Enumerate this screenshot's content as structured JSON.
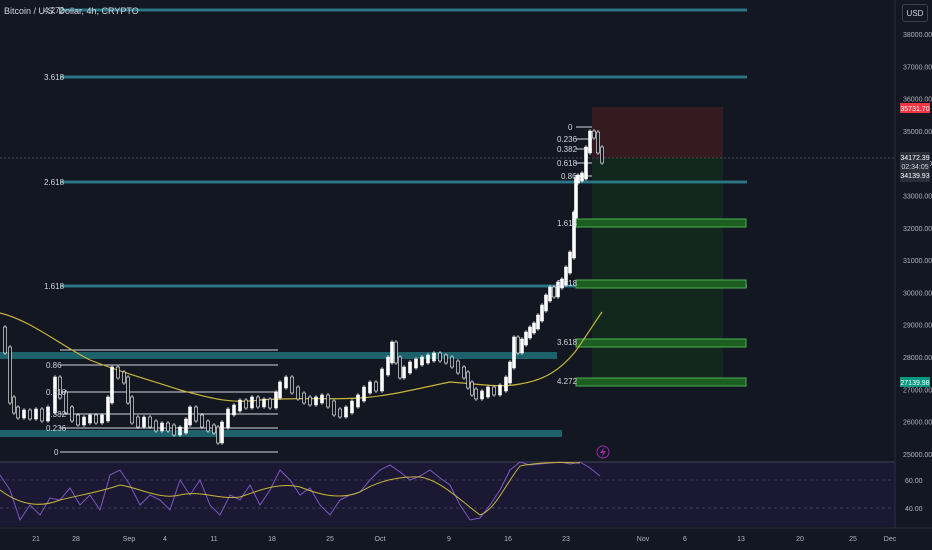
{
  "header": {
    "title": "Bitcoin / U.S. Dollar, 4h, CRYPTO",
    "currency": "USD"
  },
  "colors": {
    "background": "#131722",
    "fib_line": "#4fc3d9",
    "fib_band": "#1f5f6e",
    "ma_line": "#c9b53a",
    "rsi_line": "#7e57c2",
    "up_candle": "#ffffff",
    "down_candle": "#ffffff",
    "stop_zone": "#3a1b22",
    "target_zone": "#132a1f",
    "target_box_border": "#4caf50",
    "red_tag": "#f23645",
    "green_tag": "#089981"
  },
  "price_axis": {
    "ticks": [
      "38000.00",
      "37000.00",
      "36000.00",
      "35000.00",
      "34000.00",
      "33000.00",
      "32000.00",
      "31000.00",
      "30000.00",
      "29000.00",
      "28000.00",
      "27000.00",
      "26000.00",
      "25000.00"
    ],
    "stop_price": "35731.70",
    "current_price": "34172.39",
    "countdown": "02:34:05",
    "entry_price": "34139.93",
    "target_price": "27139.98"
  },
  "rsi_axis": {
    "ticks": [
      "60.00",
      "40.00"
    ]
  },
  "time_axis": {
    "ticks": [
      "21",
      "28",
      "Sep",
      "4",
      "11",
      "18",
      "25",
      "Oct",
      "9",
      "16",
      "23",
      "Nov",
      "6",
      "13",
      "20",
      "25",
      "Dec"
    ]
  },
  "fib_extensions_left": [
    "4.272",
    "3.618",
    "2.618",
    "1.618"
  ],
  "fib_retracement_left": [
    "0.86",
    "0.618",
    "0.382",
    "0.236",
    "0"
  ],
  "fib_retracement_right": [
    "0",
    "0.236",
    "0.382",
    "0.618",
    "0.86"
  ],
  "fib_targets_right": [
    "1.618",
    "2.618",
    "3.618",
    "4.272"
  ],
  "event_icon": "lightning-icon"
}
